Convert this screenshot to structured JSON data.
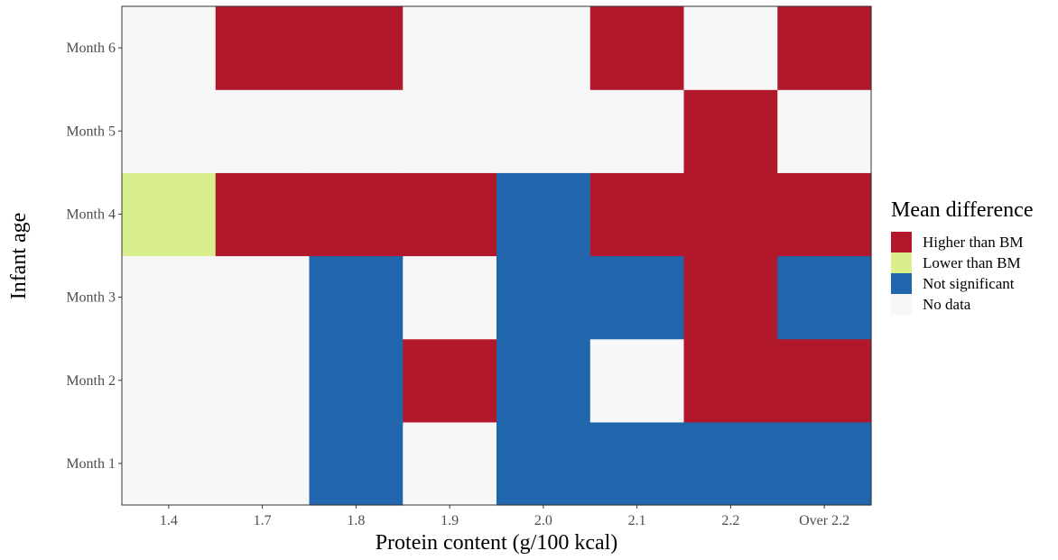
{
  "chart_data": {
    "type": "heatmap",
    "xlabel": "Protein content (g/100 kcal)",
    "ylabel": "Infant age",
    "x_categories": [
      "1.4",
      "1.7",
      "1.8",
      "1.9",
      "2.0",
      "2.1",
      "2.2",
      "Over 2.2"
    ],
    "y_categories": [
      "Month 1",
      "Month 2",
      "Month 3",
      "Month 4",
      "Month 5",
      "Month 6"
    ],
    "legend": {
      "title": "Mean difference",
      "entries": [
        {
          "label": "Higher than BM",
          "color": "#b2182b"
        },
        {
          "label": "Lower than BM",
          "color": "#d9ef8b"
        },
        {
          "label": "Not significant",
          "color": "#2166ac"
        },
        {
          "label": "No data",
          "color": "#f7f7f7"
        }
      ]
    },
    "grid": false,
    "values": {
      "Month 1": [
        "No data",
        "No data",
        "Not significant",
        "No data",
        "Not significant",
        "Not significant",
        "Not significant",
        "Not significant"
      ],
      "Month 2": [
        "No data",
        "No data",
        "Not significant",
        "Higher than BM",
        "Not significant",
        "No data",
        "Higher than BM",
        "Higher than BM"
      ],
      "Month 3": [
        "No data",
        "No data",
        "Not significant",
        "No data",
        "Not significant",
        "Not significant",
        "Higher than BM",
        "Not significant"
      ],
      "Month 4": [
        "Lower than BM",
        "Higher than BM",
        "Higher than BM",
        "Higher than BM",
        "Not significant",
        "Higher than BM",
        "Higher than BM",
        "Higher than BM"
      ],
      "Month 5": [
        "No data",
        "No data",
        "No data",
        "No data",
        "No data",
        "No data",
        "Higher than BM",
        "No data"
      ],
      "Month 6": [
        "No data",
        "Higher than BM",
        "Higher than BM",
        "No data",
        "No data",
        "Higher than BM",
        "No data",
        "Higher than BM"
      ]
    }
  }
}
